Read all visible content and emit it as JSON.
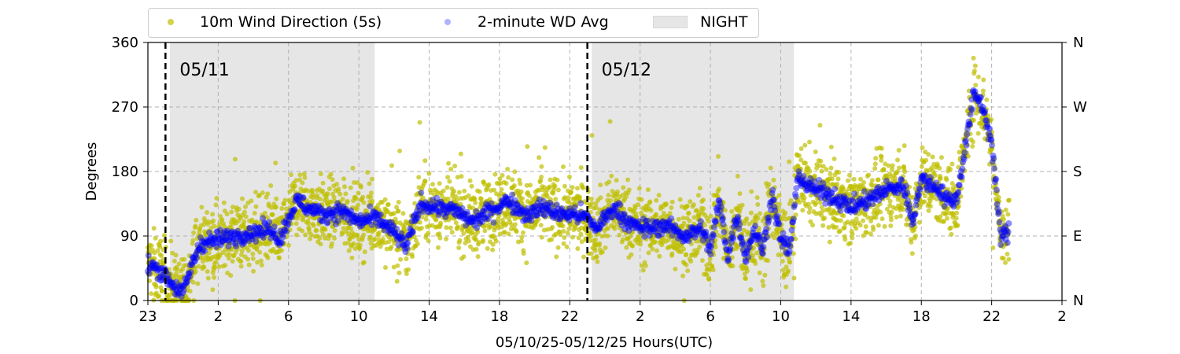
{
  "chart_data": {
    "type": "scatter",
    "title": "",
    "xlabel": "05/10/25-05/12/25  Hours(UTC)",
    "ylabel": "Degrees",
    "x_tick_labels": [
      "23",
      "2",
      "6",
      "10",
      "14",
      "18",
      "22",
      "2",
      "6",
      "10",
      "14",
      "18",
      "22",
      "2"
    ],
    "x_range_hours": [
      -1,
      51
    ],
    "ylim": [
      0,
      360
    ],
    "y_ticks": [
      0,
      90,
      180,
      270,
      360
    ],
    "right_axis_labels": [
      "N",
      "E",
      "S",
      "W",
      "N"
    ],
    "grid": true,
    "legend_position": "top-left, above plot",
    "night_periods": [
      [
        0.25,
        11.9
      ],
      [
        24.25,
        35.75
      ]
    ],
    "day_markers": [
      {
        "x": 0,
        "label": "05/11"
      },
      {
        "x": 24,
        "label": "05/12"
      }
    ],
    "series": [
      {
        "name": "10m Wind Direction (5s)",
        "color": "#bfbf00",
        "x": [
          -1.0,
          -0.5,
          0.0,
          0.5,
          1.0,
          1.5,
          2.0,
          3.0,
          4.0,
          5.0,
          6.0,
          6.5,
          7.0,
          7.5,
          8.0,
          9.0,
          10.0,
          11.0,
          12.0,
          13.0,
          13.7,
          14.5,
          15.5,
          16.5,
          17.5,
          18.5,
          19.5,
          20.5,
          21.5,
          22.5,
          23.5,
          24.0,
          24.5,
          25.5,
          26.5,
          27.5,
          28.5,
          29.5,
          30.5,
          31.0,
          31.5,
          32.0,
          32.5,
          33.0,
          33.5,
          34.0,
          34.5,
          35.0,
          35.5,
          36.0,
          36.5,
          37.0,
          38.0,
          39.0,
          40.0,
          41.0,
          42.0,
          42.5,
          43.0,
          44.0,
          44.5,
          45.0,
          46.0,
          46.5,
          47.0,
          47.5,
          48.0
        ],
        "y": [
          50,
          45,
          35,
          20,
          10,
          50,
          80,
          85,
          90,
          95,
          100,
          85,
          115,
          140,
          130,
          120,
          125,
          110,
          115,
          95,
          75,
          135,
          130,
          125,
          110,
          125,
          140,
          120,
          130,
          120,
          120,
          115,
          100,
          130,
          105,
          100,
          105,
          90,
          100,
          70,
          140,
          60,
          120,
          60,
          100,
          70,
          150,
          85,
          70,
          175,
          160,
          155,
          145,
          130,
          140,
          155,
          160,
          110,
          170,
          155,
          140,
          140,
          290,
          270,
          220,
          90,
          95
        ]
      },
      {
        "name": "2-minute WD Avg",
        "color": "#0000ff",
        "x": [
          -1.0,
          -0.5,
          0.0,
          0.5,
          1.0,
          1.5,
          2.0,
          3.0,
          4.0,
          5.0,
          6.0,
          6.5,
          7.0,
          7.5,
          8.0,
          9.0,
          10.0,
          11.0,
          12.0,
          13.0,
          13.7,
          14.5,
          15.5,
          16.5,
          17.5,
          18.5,
          19.5,
          20.5,
          21.5,
          22.5,
          23.5,
          24.0,
          24.5,
          25.5,
          26.5,
          27.5,
          28.5,
          29.5,
          30.5,
          31.0,
          31.5,
          32.0,
          32.5,
          33.0,
          33.5,
          34.0,
          34.5,
          35.0,
          35.5,
          36.0,
          36.5,
          37.0,
          38.0,
          39.0,
          40.0,
          41.0,
          42.0,
          42.5,
          43.0,
          44.0,
          44.5,
          45.0,
          46.0,
          46.5,
          47.0,
          47.5,
          48.0
        ],
        "y": [
          50,
          45,
          35,
          20,
          10,
          50,
          80,
          85,
          90,
          95,
          100,
          85,
          115,
          140,
          130,
          120,
          125,
          110,
          115,
          95,
          75,
          135,
          130,
          125,
          110,
          125,
          140,
          120,
          130,
          120,
          120,
          115,
          100,
          130,
          105,
          100,
          105,
          90,
          100,
          70,
          140,
          60,
          120,
          60,
          100,
          70,
          150,
          85,
          70,
          175,
          160,
          155,
          145,
          130,
          140,
          155,
          160,
          110,
          170,
          155,
          140,
          140,
          290,
          270,
          220,
          90,
          95
        ]
      }
    ],
    "legend": {
      "series1": "10m Wind Direction (5s)",
      "series2": "2-minute WD Avg",
      "night": "NIGHT"
    },
    "colors": {
      "scatter": "#bfbf00",
      "avg": "#0000ff",
      "night_fill": "#e6e6e6",
      "grid": "#b0b0b0"
    }
  }
}
